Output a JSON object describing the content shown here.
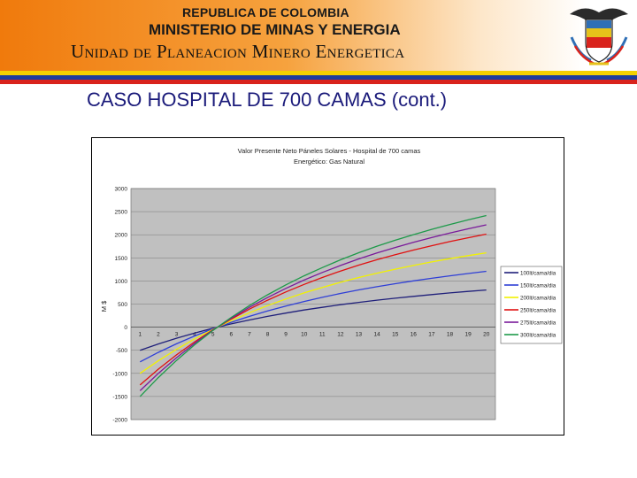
{
  "header": {
    "line1": "REPUBLICA DE COLOMBIA",
    "line2": "MINISTERIO DE MINAS Y ENERGIA",
    "line3": "Unidad de Planeacion Minero Energetica",
    "stripe_colors": [
      "#f5d000",
      "#1f3c9c",
      "#d9231c"
    ]
  },
  "slide": {
    "title": "CASO HOSPITAL DE 700 CAMAS (cont.)"
  },
  "chart_data": {
    "type": "line",
    "title_line1": "Valor Presente Neto Páneles Solares - Hospital de 700 camas",
    "title_line2": "Energético: Gas Natural",
    "ylabel": "M $",
    "xlabel": "",
    "x": [
      1,
      2,
      3,
      4,
      5,
      6,
      7,
      8,
      9,
      10,
      11,
      12,
      13,
      14,
      15,
      16,
      17,
      18,
      19,
      20
    ],
    "ylim": [
      -2000,
      3000
    ],
    "yticks": [
      3000,
      2500,
      2000,
      1500,
      1000,
      500,
      0,
      -500,
      -1000,
      -1500,
      -2000
    ],
    "grid": true,
    "legend_position": "right",
    "plot_background": "#c0c0c0",
    "series": [
      {
        "name": "100lt/cama/dia",
        "color": "#1f1f7a",
        "values": [
          -500,
          -364,
          -240,
          -127,
          -23,
          70,
          156,
          233,
          305,
          371,
          430,
          486,
          537,
          584,
          627,
          667,
          705,
          741,
          774,
          805
        ]
      },
      {
        "name": "150lt/cama/dia",
        "color": "#2f3fd6",
        "values": [
          -750,
          -546,
          -360,
          -190,
          -35,
          105,
          234,
          350,
          457,
          556,
          645,
          729,
          806,
          876,
          941,
          1001,
          1058,
          1111,
          1161,
          1208
        ]
      },
      {
        "name": "200lt/cama/dia",
        "color": "#f2f200",
        "values": [
          -1000,
          -728,
          -480,
          -253,
          -47,
          140,
          312,
          467,
          610,
          741,
          860,
          972,
          1074,
          1168,
          1254,
          1335,
          1411,
          1482,
          1548,
          1610
        ]
      },
      {
        "name": "250lt/cama/dia",
        "color": "#e01010",
        "values": [
          -1250,
          -910,
          -600,
          -317,
          -58,
          175,
          390,
          584,
          762,
          926,
          1075,
          1215,
          1343,
          1460,
          1568,
          1668,
          1763,
          1852,
          1935,
          2013
        ]
      },
      {
        "name": "275lt/cama/dia",
        "color": "#7a1a9a",
        "values": [
          -1375,
          -1001,
          -660,
          -348,
          -64,
          193,
          429,
          642,
          839,
          1019,
          1183,
          1336,
          1477,
          1606,
          1725,
          1835,
          1939,
          2037,
          2129,
          2214
        ]
      },
      {
        "name": "300lt/cama/dia",
        "color": "#1e9a4a",
        "values": [
          -1500,
          -1092,
          -720,
          -380,
          -70,
          210,
          468,
          701,
          915,
          1112,
          1290,
          1458,
          1611,
          1752,
          1881,
          2002,
          2116,
          2222,
          2322,
          2415
        ]
      }
    ]
  }
}
